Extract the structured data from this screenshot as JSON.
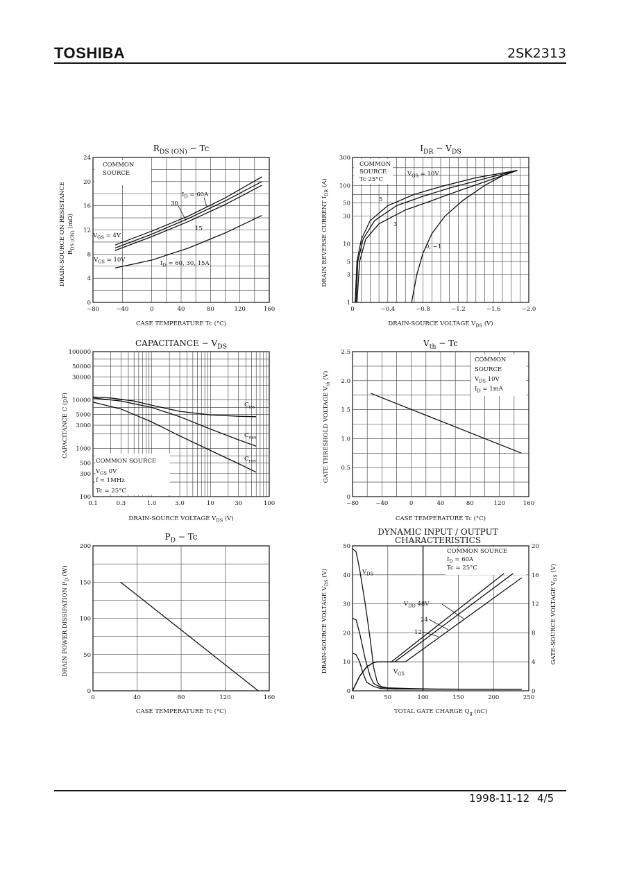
{
  "header": {
    "brand": "TOSHIBA",
    "part_number": "2SK2313"
  },
  "footer": {
    "date": "1998-11-12",
    "page": "4/5"
  },
  "chart_data": [
    {
      "id": "rds",
      "type": "line",
      "title": [
        "R",
        "DS (ON)",
        " − Tc"
      ],
      "xlabel": "CASE TEMPERATURE   Tc   (°C)",
      "ylabel": [
        "DRAIN-SOURCE ON RESISTANCE",
        "R",
        "DS (ON)",
        "  (mΩ)"
      ],
      "xlim": [
        -80,
        160
      ],
      "ylim": [
        0,
        24
      ],
      "xticks": [
        -80,
        -40,
        0,
        40,
        80,
        120,
        160
      ],
      "xtick_labels": [
        "−80",
        "−40",
        "0",
        "40",
        "80",
        "120",
        "160"
      ],
      "yticks": [
        0,
        4,
        8,
        12,
        16,
        20,
        24
      ],
      "ytick_labels": [
        "0",
        "4",
        "8",
        "12",
        "16",
        "20",
        "24"
      ],
      "series": [
        {
          "x": [
            -50,
            0,
            50,
            100,
            150
          ],
          "y": [
            9.5,
            11.8,
            14.3,
            17.3,
            20.8
          ]
        },
        {
          "x": [
            -50,
            0,
            50,
            100,
            150
          ],
          "y": [
            9.0,
            11.3,
            13.9,
            16.8,
            20.0
          ]
        },
        {
          "x": [
            -50,
            0,
            50,
            100,
            150
          ],
          "y": [
            8.6,
            10.9,
            13.4,
            16.2,
            19.4
          ]
        },
        {
          "x": [
            -50,
            0,
            50,
            100,
            150
          ],
          "y": [
            5.7,
            7.0,
            9.0,
            11.5,
            14.4
          ]
        }
      ],
      "annotations": {
        "common_source": [
          "COMMON",
          "SOURCE"
        ],
        "id": [
          "I",
          "D",
          " = 60A"
        ],
        "a30": "30",
        "a15": "15",
        "vgs4": [
          "V",
          "GS",
          " = 4V"
        ],
        "vgs10": [
          "V",
          "GS",
          " = 10V"
        ],
        "id2": [
          "I",
          "D",
          " = 60, 30, 15A"
        ]
      }
    },
    {
      "id": "idr",
      "type": "line",
      "title": [
        "I",
        "DR",
        " − V",
        "DS"
      ],
      "xlabel": [
        "DRAIN-SOURCE VOLTAGE   V",
        "DS",
        "   (V)"
      ],
      "ylabel": [
        "DRAIN REVERSE CURRENT   I",
        "DR",
        "   (A)"
      ],
      "xlim": [
        0,
        -2.0
      ],
      "ylim": [
        1,
        300
      ],
      "yscale": "log",
      "xticks": [
        0,
        -0.4,
        -0.8,
        -1.2,
        -1.6,
        -2.0
      ],
      "xtick_labels": [
        "0",
        "−0.4",
        "−0.8",
        "−1.2",
        "−1.6",
        "−2.0"
      ],
      "yticks": [
        1,
        3,
        5,
        10,
        30,
        50,
        100,
        300
      ],
      "ytick_labels": [
        "1",
        "3",
        "5",
        "10",
        "30",
        "50",
        "100",
        "300"
      ],
      "series": [
        {
          "x": [
            -0.03,
            -0.05,
            -0.1,
            -0.2,
            -0.4,
            -0.7,
            -1.0,
            -1.4,
            -1.87
          ],
          "y": [
            1,
            5,
            12,
            25,
            45,
            70,
            95,
            135,
            180
          ]
        },
        {
          "x": [
            -0.04,
            -0.06,
            -0.12,
            -0.25,
            -0.5,
            -0.8,
            -1.1,
            -1.5,
            -1.87
          ],
          "y": [
            1,
            5,
            12,
            25,
            45,
            65,
            90,
            130,
            180
          ]
        },
        {
          "x": [
            -0.05,
            -0.08,
            -0.15,
            -0.3,
            -0.6,
            -0.9,
            -1.2,
            -1.5,
            -1.87
          ],
          "y": [
            1,
            5,
            12,
            22,
            38,
            55,
            80,
            115,
            180
          ]
        },
        {
          "x": [
            -0.67,
            -0.73,
            -0.8,
            -0.9,
            -1.05,
            -1.25,
            -1.5,
            -1.7,
            -1.87
          ],
          "y": [
            1,
            3,
            7,
            15,
            30,
            55,
            100,
            145,
            180
          ]
        }
      ],
      "annotations": {
        "common_source": [
          "COMMON",
          "SOURCE",
          "Tc  25°C"
        ],
        "vgs10": [
          "V",
          "GS",
          " = 10V"
        ],
        "a5": "5",
        "a3": "3",
        "a0": "0, −1"
      }
    },
    {
      "id": "cap",
      "type": "line",
      "title": [
        "CAPACITANCE  −  V",
        "DS"
      ],
      "xlabel": [
        "DRAIN-SOURCE VOLTAGE   V",
        "DS",
        "   (V)"
      ],
      "ylabel": [
        "CAPACITANCE   C   (pF)"
      ],
      "xlim": [
        0.1,
        100
      ],
      "xscale": "log",
      "ylim": [
        100,
        100000
      ],
      "yscale": "log",
      "xticks": [
        0.1,
        0.3,
        1,
        3,
        10,
        30,
        100
      ],
      "xtick_labels": [
        "0.1",
        "0.3",
        "1.0",
        "3.0",
        "10",
        "30",
        "100"
      ],
      "yticks": [
        100,
        300,
        500,
        1000,
        3000,
        5000,
        10000,
        30000,
        50000,
        100000
      ],
      "ytick_labels": [
        "100",
        "300",
        "500",
        "1000",
        "3000",
        "5000",
        "10000",
        "30000",
        "50000",
        "100000"
      ],
      "series": [
        {
          "name": "Ciss",
          "x": [
            0.1,
            0.2,
            0.5,
            1,
            3,
            10,
            30,
            60
          ],
          "y": [
            11500,
            11000,
            9500,
            7800,
            5800,
            4900,
            4600,
            4500
          ]
        },
        {
          "name": "Coss",
          "x": [
            0.1,
            0.3,
            1,
            3,
            10,
            30,
            60
          ],
          "y": [
            11000,
            9500,
            7000,
            4500,
            2500,
            1500,
            1100
          ]
        },
        {
          "name": "Crss",
          "x": [
            0.1,
            0.3,
            1,
            3,
            10,
            30,
            60
          ],
          "y": [
            9000,
            6500,
            3500,
            1800,
            900,
            480,
            320
          ]
        }
      ],
      "annotations": {
        "ciss": [
          "C",
          "iss"
        ],
        "coss": [
          "C",
          "oss"
        ],
        "crss": [
          "C",
          "rss"
        ],
        "common_source": [
          "COMMON SOURCE",
          "V",
          "GS",
          "  0V",
          "f = 1MHz",
          "Tc = 25°C"
        ]
      }
    },
    {
      "id": "vth",
      "type": "line",
      "title": [
        "V",
        "th",
        " − Tc"
      ],
      "xlabel": "CASE TEMPERATURE   Tc   (°C)",
      "ylabel": [
        "GATE THRESHOLD VOLTAGE   V",
        "th",
        "   (V)"
      ],
      "xlim": [
        -80,
        160
      ],
      "ylim": [
        0,
        2.5
      ],
      "xticks": [
        -80,
        -40,
        0,
        40,
        80,
        120,
        160
      ],
      "xtick_labels": [
        "−80",
        "−40",
        "0",
        "40",
        "80",
        "120",
        "160"
      ],
      "yticks": [
        0,
        0.5,
        1.0,
        1.5,
        2.0,
        2.5
      ],
      "ytick_labels": [
        "0",
        "0.5",
        "1.0",
        "1.5",
        "2.0",
        "2.5"
      ],
      "series": [
        {
          "x": [
            -55,
            150
          ],
          "y": [
            1.78,
            0.75
          ]
        }
      ],
      "annotations": {
        "common_source": [
          "COMMON",
          "SOURCE",
          "V",
          "DS",
          "  10V",
          "I",
          "D",
          " = 1mA"
        ]
      }
    },
    {
      "id": "pd",
      "type": "line",
      "title": [
        "P",
        "D",
        " − Tc"
      ],
      "xlabel": "CASE TEMPERATURE   Tc   (°C)",
      "ylabel": [
        "DRAIN POWER DISSIPATION   P",
        "D",
        "   (W)"
      ],
      "xlim": [
        0,
        160
      ],
      "ylim": [
        0,
        200
      ],
      "xticks": [
        0,
        40,
        80,
        120,
        160
      ],
      "xtick_labels": [
        "0",
        "40",
        "80",
        "120",
        "160"
      ],
      "yticks": [
        0,
        50,
        100,
        150,
        200
      ],
      "ytick_labels": [
        "0",
        "50",
        "100",
        "150",
        "200"
      ],
      "series": [
        {
          "x": [
            25,
            150
          ],
          "y": [
            150,
            0
          ]
        }
      ]
    },
    {
      "id": "dyn",
      "type": "line",
      "title": [
        "DYNAMIC INPUT / OUTPUT",
        "CHARACTERISTICS"
      ],
      "xlabel": [
        "TOTAL GATE CHARGE   Q",
        "g",
        "   (nC)"
      ],
      "ylabel": [
        "DRAIN-SOURCE VOLTAGE   V",
        "DS",
        "   (V)"
      ],
      "ylabel2": [
        "GATE-SOURCE VOLTAGE   V",
        "GS",
        "   (V)"
      ],
      "xlim": [
        0,
        250
      ],
      "ylim": [
        0,
        50
      ],
      "y2lim": [
        0,
        20
      ],
      "xticks": [
        0,
        50,
        100,
        150,
        200,
        250
      ],
      "xtick_labels": [
        "0",
        "50",
        "100",
        "150",
        "200",
        "250"
      ],
      "yticks": [
        0,
        10,
        20,
        30,
        40,
        50
      ],
      "ytick_labels": [
        "0",
        "10",
        "20",
        "30",
        "40",
        "50"
      ],
      "y2ticks": [
        0,
        4,
        8,
        12,
        16,
        20
      ],
      "y2tick_labels": [
        "0",
        "4",
        "8",
        "12",
        "16",
        "20"
      ],
      "series_vds": [
        {
          "x": [
            0,
            5,
            10,
            18,
            25,
            30,
            35,
            40,
            50,
            80,
            120,
            200,
            240
          ],
          "y": [
            49,
            48,
            42,
            30,
            18,
            8,
            3,
            1.5,
            1,
            0.8,
            0.6,
            0.5,
            0.5
          ]
        },
        {
          "x": [
            0,
            5,
            10,
            18,
            25,
            30,
            40,
            60,
            100,
            240
          ],
          "y": [
            25,
            24.5,
            20,
            11,
            5,
            2.5,
            1.2,
            0.8,
            0.6,
            0.5
          ]
        },
        {
          "x": [
            0,
            5,
            10,
            15,
            20,
            30,
            40,
            60,
            240
          ],
          "y": [
            13,
            12.5,
            10,
            6,
            3,
            1.5,
            0.8,
            0.6,
            0.5
          ]
        }
      ],
      "series_vgs": [
        {
          "x": [
            0,
            10,
            20,
            30,
            35,
            55,
            215
          ],
          "y": [
            0,
            2,
            3.3,
            3.9,
            4.0,
            4.0,
            16.2
          ]
        },
        {
          "x": [
            0,
            10,
            20,
            30,
            35,
            60,
            228
          ],
          "y": [
            0,
            2,
            3.3,
            3.9,
            4.0,
            4.0,
            16.2
          ]
        },
        {
          "x": [
            0,
            10,
            20,
            30,
            35,
            75,
            240
          ],
          "y": [
            0,
            2,
            3.3,
            3.9,
            4.0,
            4.0,
            15.6
          ]
        }
      ],
      "annotations": {
        "common_source": [
          "COMMON SOURCE",
          "I",
          "D",
          " = 60A",
          "Tc = 25°C"
        ],
        "vds": [
          "V",
          "DS"
        ],
        "vgs": [
          "V",
          "GS"
        ],
        "vdd": [
          "V",
          "DD",
          "   48V"
        ],
        "a24": "24",
        "a12": "12"
      }
    }
  ]
}
